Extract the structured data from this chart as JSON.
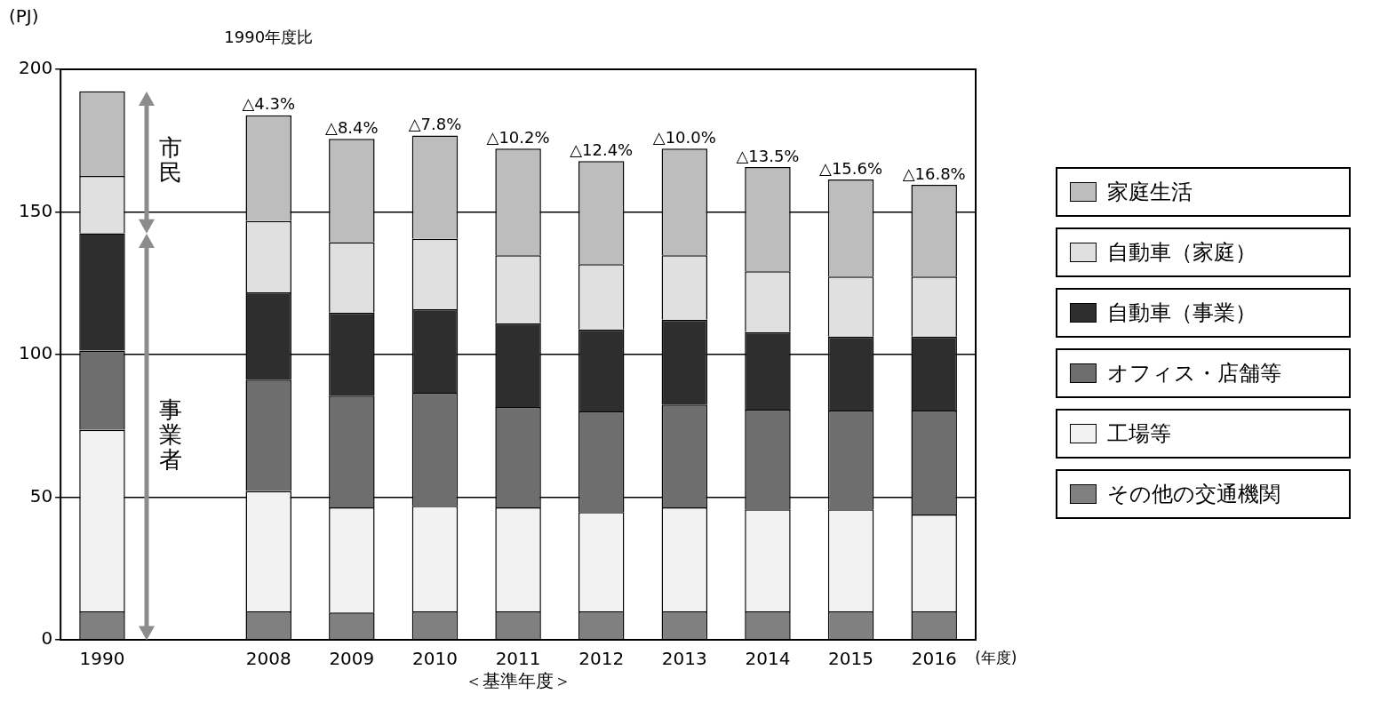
{
  "chart_data": {
    "type": "bar",
    "stacked": true,
    "ylabel": "(PJ)",
    "xlabel": "(年度)",
    "categories": [
      "1990",
      null,
      "2008",
      "2009",
      "2010",
      "2011",
      "2012",
      "2013",
      "2014",
      "2015",
      "2016"
    ],
    "series": [
      {
        "name": "その他の交通機関",
        "color": "#808080",
        "values": [
          10,
          null,
          10,
          9.6,
          10,
          10,
          10,
          10,
          10,
          10,
          10
        ]
      },
      {
        "name": "工場等",
        "color": "#f2f2f2",
        "values": [
          63.6,
          null,
          42.2,
          36.8,
          37,
          36.4,
          34.8,
          36.4,
          35.7,
          35.7,
          33.9
        ]
      },
      {
        "name": "オフィス・店舗等",
        "color": "#6e6e6e",
        "values": [
          27.8,
          null,
          39,
          39.2,
          39.6,
          35.2,
          35.3,
          36.1,
          35,
          34.7,
          36.5
        ]
      },
      {
        "name": "自動車（事業）",
        "color": "#2e2e2e",
        "values": [
          41.1,
          null,
          30.6,
          29.1,
          29.3,
          29.4,
          28.7,
          29.7,
          27.2,
          25.9,
          25.9
        ]
      },
      {
        "name": "自動車（家庭）",
        "color": "#e0e0e0",
        "values": [
          20.1,
          null,
          25,
          24.7,
          24.7,
          23.8,
          22.9,
          22.6,
          21.3,
          21,
          21
        ]
      },
      {
        "name": "家庭生活",
        "color": "#bdbdbd",
        "values": [
          29.7,
          null,
          37.1,
          36.2,
          36.2,
          37.4,
          36.1,
          37.4,
          36.5,
          34.1,
          32.2
        ]
      }
    ],
    "ylim": [
      0,
      200
    ],
    "yticks": [
      0,
      50,
      100,
      150,
      200
    ],
    "grid": "y",
    "legend": "right",
    "annotations": [
      "市民",
      "事業者",
      "1990年度比",
      {
        "text": "△4.3%",
        "x": "2008",
        "y": 183.9
      },
      {
        "text": "△8.4%",
        "x": "2009",
        "y": 175.6
      },
      {
        "text": "△7.8%",
        "x": "2010",
        "y": 176.8
      },
      {
        "text": "△10.2%",
        "x": "2011",
        "y": 172.2
      },
      {
        "text": "△12.4%",
        "x": "2012",
        "y": 167.8
      },
      {
        "text": "△10.0%",
        "x": "2013",
        "y": 172.2
      },
      {
        "text": "△13.5%",
        "x": "2014",
        "y": 165.7
      },
      {
        "text": "△15.6%",
        "x": "2015",
        "y": 161.4
      },
      {
        "text": "△16.8%",
        "x": "2016",
        "y": 159.5
      },
      "＜基準年度＞"
    ]
  }
}
